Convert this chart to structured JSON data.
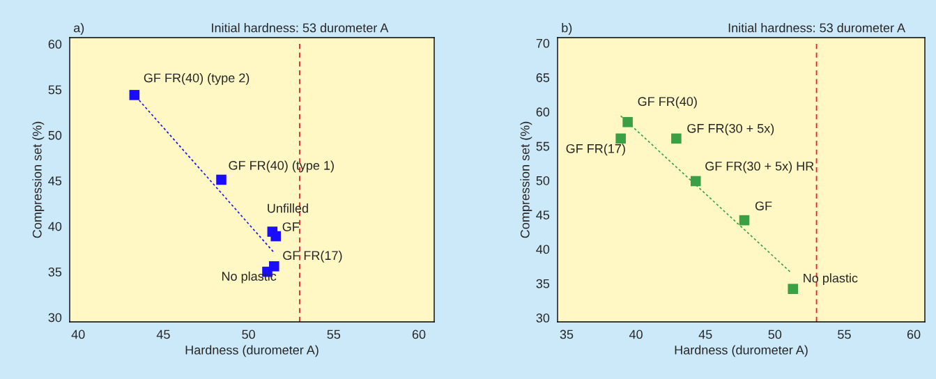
{
  "chart_data": [
    {
      "type": "scatter",
      "title": "a)",
      "xlabel": "Hardness (durometer A)",
      "ylabel": "Compression set (%)",
      "xlim": [
        39.5,
        60.9
      ],
      "ylim": [
        29.5,
        60.7
      ],
      "xticks": [
        40,
        45,
        50,
        55,
        60
      ],
      "yticks": [
        30,
        35,
        40,
        45,
        50,
        55,
        60
      ],
      "grid": false,
      "legend": false,
      "series": [
        {
          "color": "#1a0dff",
          "marker": "square",
          "x": [
            43.3,
            48.4,
            51.4,
            51.6,
            51.5,
            51.1
          ],
          "values": [
            54.4,
            45.1,
            39.4,
            38.9,
            35.6,
            35.0
          ]
        },
        {
          "type": "line",
          "color": "#1a0dff",
          "line_style": "dotted",
          "marker": "none",
          "x": [
            43.4,
            51.5
          ],
          "values": [
            54.2,
            37.1
          ]
        }
      ],
      "ref_lines": [
        {
          "axis": "x",
          "value": 53,
          "label": "Initial hardness: 53 durometer A",
          "color": "#e8202a",
          "line_style": "dashed"
        }
      ],
      "annotations": [
        {
          "text": "GF FR(40) (type 2)",
          "x": 43.3,
          "y": 54.4
        },
        {
          "text": "GF FR(40) (type 1)",
          "x": 48.4,
          "y": 45.1
        },
        {
          "text": "Unfilled",
          "x": 51.4,
          "y": 39.4
        },
        {
          "text": "GF",
          "x": 51.6,
          "y": 38.9
        },
        {
          "text": "GF FR(17)",
          "x": 51.5,
          "y": 35.6
        },
        {
          "text": "No plastic",
          "x": 51.1,
          "y": 35.0
        }
      ]
    },
    {
      "type": "scatter",
      "title": "b)",
      "xlabel": "Hardness (durometer A)",
      "ylabel": "Compression set (%)",
      "xlim": [
        34.35,
        60.8
      ],
      "ylim": [
        29.4,
        70.8
      ],
      "xticks": [
        35,
        40,
        45,
        50,
        55,
        60
      ],
      "yticks": [
        30,
        35,
        40,
        45,
        50,
        55,
        60,
        65,
        70
      ],
      "grid": false,
      "legend": false,
      "series": [
        {
          "color": "#3aa043",
          "marker": "square",
          "x": [
            39.4,
            38.9,
            42.9,
            44.3,
            47.8,
            51.3
          ],
          "values": [
            58.5,
            56.1,
            56.1,
            49.9,
            44.2,
            34.2
          ]
        },
        {
          "type": "line",
          "color": "#3aa043",
          "line_style": "dotted",
          "marker": "none",
          "x": [
            38.9,
            51.1
          ],
          "values": [
            59.4,
            36.7
          ]
        }
      ],
      "ref_lines": [
        {
          "axis": "x",
          "value": 53,
          "label": "Initial hardness: 53 durometer A",
          "color": "#e8202a",
          "line_style": "dashed"
        }
      ],
      "annotations": [
        {
          "text": "GF FR(40)",
          "x": 39.4,
          "y": 58.5
        },
        {
          "text": "GF FR(17)",
          "x": 38.9,
          "y": 56.1
        },
        {
          "text": "GF FR(30 + 5x)",
          "x": 42.9,
          "y": 56.1
        },
        {
          "text": "GF FR(30 + 5x) HR",
          "x": 44.3,
          "y": 49.9
        },
        {
          "text": "GF",
          "x": 47.8,
          "y": 44.2
        },
        {
          "text": "No plastic",
          "x": 51.3,
          "y": 34.2
        }
      ]
    }
  ]
}
